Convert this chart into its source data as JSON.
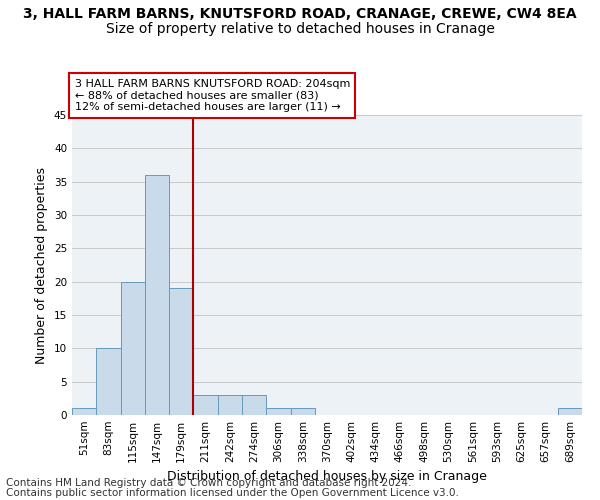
{
  "title1": "3, HALL FARM BARNS, KNUTSFORD ROAD, CRANAGE, CREWE, CW4 8EA",
  "title2": "Size of property relative to detached houses in Cranage",
  "xlabel": "Distribution of detached houses by size in Cranage",
  "ylabel": "Number of detached properties",
  "bins": [
    "51sqm",
    "83sqm",
    "115sqm",
    "147sqm",
    "179sqm",
    "211sqm",
    "242sqm",
    "274sqm",
    "306sqm",
    "338sqm",
    "370sqm",
    "402sqm",
    "434sqm",
    "466sqm",
    "498sqm",
    "530sqm",
    "561sqm",
    "593sqm",
    "625sqm",
    "657sqm",
    "689sqm"
  ],
  "values": [
    1,
    10,
    20,
    36,
    19,
    3,
    3,
    3,
    1,
    1,
    0,
    0,
    0,
    0,
    0,
    0,
    0,
    0,
    0,
    0,
    1
  ],
  "bar_color": "#c9daea",
  "bar_edge_color": "#6699bb",
  "vline_color": "#aa0000",
  "annotation_text": "3 HALL FARM BARNS KNUTSFORD ROAD: 204sqm\n← 88% of detached houses are smaller (83)\n12% of semi-detached houses are larger (11) →",
  "annotation_box_color": "white",
  "annotation_box_edge": "#cc0000",
  "ylim": [
    0,
    45
  ],
  "yticks": [
    0,
    5,
    10,
    15,
    20,
    25,
    30,
    35,
    40,
    45
  ],
  "footnote1": "Contains HM Land Registry data © Crown copyright and database right 2024.",
  "footnote2": "Contains public sector information licensed under the Open Government Licence v3.0.",
  "background_color": "#edf2f7",
  "grid_color": "#c8c8c8",
  "title1_fontsize": 10,
  "title2_fontsize": 10,
  "annotation_fontsize": 8,
  "axis_label_fontsize": 9,
  "tick_fontsize": 7.5,
  "footnote_fontsize": 7.5,
  "vline_bin": 4.5
}
